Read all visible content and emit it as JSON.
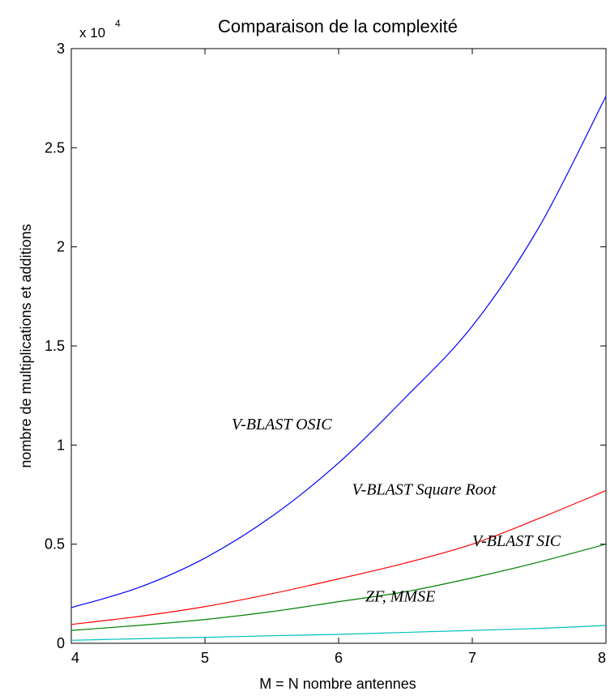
{
  "chart_data": {
    "type": "line",
    "title": "Comparaison de la complexité",
    "xlabel": "M = N nombre antennes",
    "ylabel": "nombre de multiplications et additions",
    "y_multiplier": {
      "base": "x 10",
      "exponent": "4"
    },
    "xlim": [
      4,
      8
    ],
    "ylim": [
      0,
      30000
    ],
    "x_ticks": [
      4,
      5,
      6,
      7,
      8
    ],
    "x_tick_labels": [
      "4",
      "5",
      "6",
      "7",
      "8"
    ],
    "y_ticks": [
      0,
      5000,
      10000,
      15000,
      20000,
      25000,
      30000
    ],
    "y_tick_labels": [
      "0",
      "0.5",
      "1",
      "1.5",
      "2",
      "2.5",
      "3"
    ],
    "grid": false,
    "x": [
      4,
      4.5,
      5,
      5.5,
      6,
      6.5,
      7,
      7.5,
      8
    ],
    "series": [
      {
        "name": "V-BLAST OSIC",
        "color": "#0000ff",
        "values": [
          1800,
          2800,
          4300,
          6400,
          9100,
          12400,
          16000,
          21000,
          27600
        ]
      },
      {
        "name": "V-BLAST Square Root",
        "color": "#ff0000",
        "values": [
          950,
          1350,
          1850,
          2500,
          3250,
          4050,
          5000,
          6300,
          7700
        ]
      },
      {
        "name": "V-BLAST SIC",
        "color": "#008000",
        "values": [
          650,
          900,
          1200,
          1600,
          2100,
          2600,
          3300,
          4100,
          5000
        ]
      },
      {
        "name": "ZF, MMSE",
        "color": "#00bfbf",
        "values": [
          150,
          230,
          300,
          380,
          450,
          550,
          650,
          750,
          900
        ]
      }
    ],
    "annotations": [
      {
        "text": "V-BLAST OSIC",
        "x": 5.2,
        "y": 10800
      },
      {
        "text": "V-BLAST Square Root",
        "x": 6.1,
        "y": 7500
      },
      {
        "text": "V-BLAST SIC",
        "x": 7.0,
        "y": 4900
      },
      {
        "text": "ZF, MMSE",
        "x": 6.2,
        "y": 2100
      }
    ]
  }
}
